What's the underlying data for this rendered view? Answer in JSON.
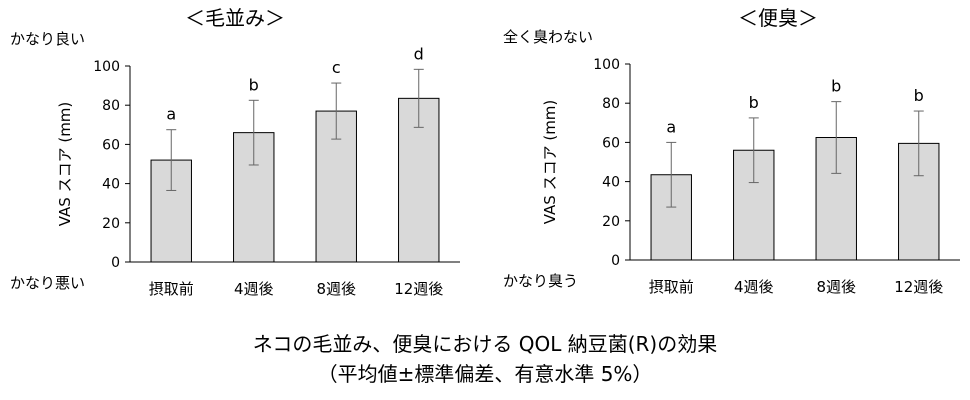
{
  "chart_data": [
    {
      "type": "bar",
      "title": "＜毛並み＞",
      "ylabel": "VAS スコア (mm)",
      "scale_top_label": "かなり良い",
      "scale_bottom_label": "かなり悪い",
      "categories": [
        "摂取前",
        "4週後",
        "8週後",
        "12週後"
      ],
      "values": [
        52,
        66,
        77,
        83.5
      ],
      "error": [
        15.5,
        16.5,
        14.3,
        14.8
      ],
      "significance_letters": [
        "a",
        "b",
        "c",
        "d"
      ],
      "ylim": [
        0,
        100
      ],
      "yticks": [
        0,
        20,
        40,
        60,
        80,
        100
      ],
      "grid": false,
      "bar_color": "#d9d9d9"
    },
    {
      "type": "bar",
      "title": "＜便臭＞",
      "ylabel": "VAS スコア (mm)",
      "scale_top_label": "全く臭わない",
      "scale_bottom_label": "かなり臭う",
      "categories": [
        "摂取前",
        "4週後",
        "8週後",
        "12週後"
      ],
      "values": [
        43.5,
        56,
        62.5,
        59.5
      ],
      "error": [
        16.5,
        16.5,
        18.3,
        16.5
      ],
      "significance_letters": [
        "a",
        "b",
        "b",
        "b"
      ],
      "ylim": [
        0,
        100
      ],
      "yticks": [
        0,
        20,
        40,
        60,
        80,
        100
      ],
      "grid": false,
      "bar_color": "#d9d9d9"
    }
  ],
  "caption": {
    "line1": "ネコの毛並み、便臭における QOL 納豆菌(R)の効果",
    "line2": "（平均値±標準偏差、有意水準 5%）"
  }
}
